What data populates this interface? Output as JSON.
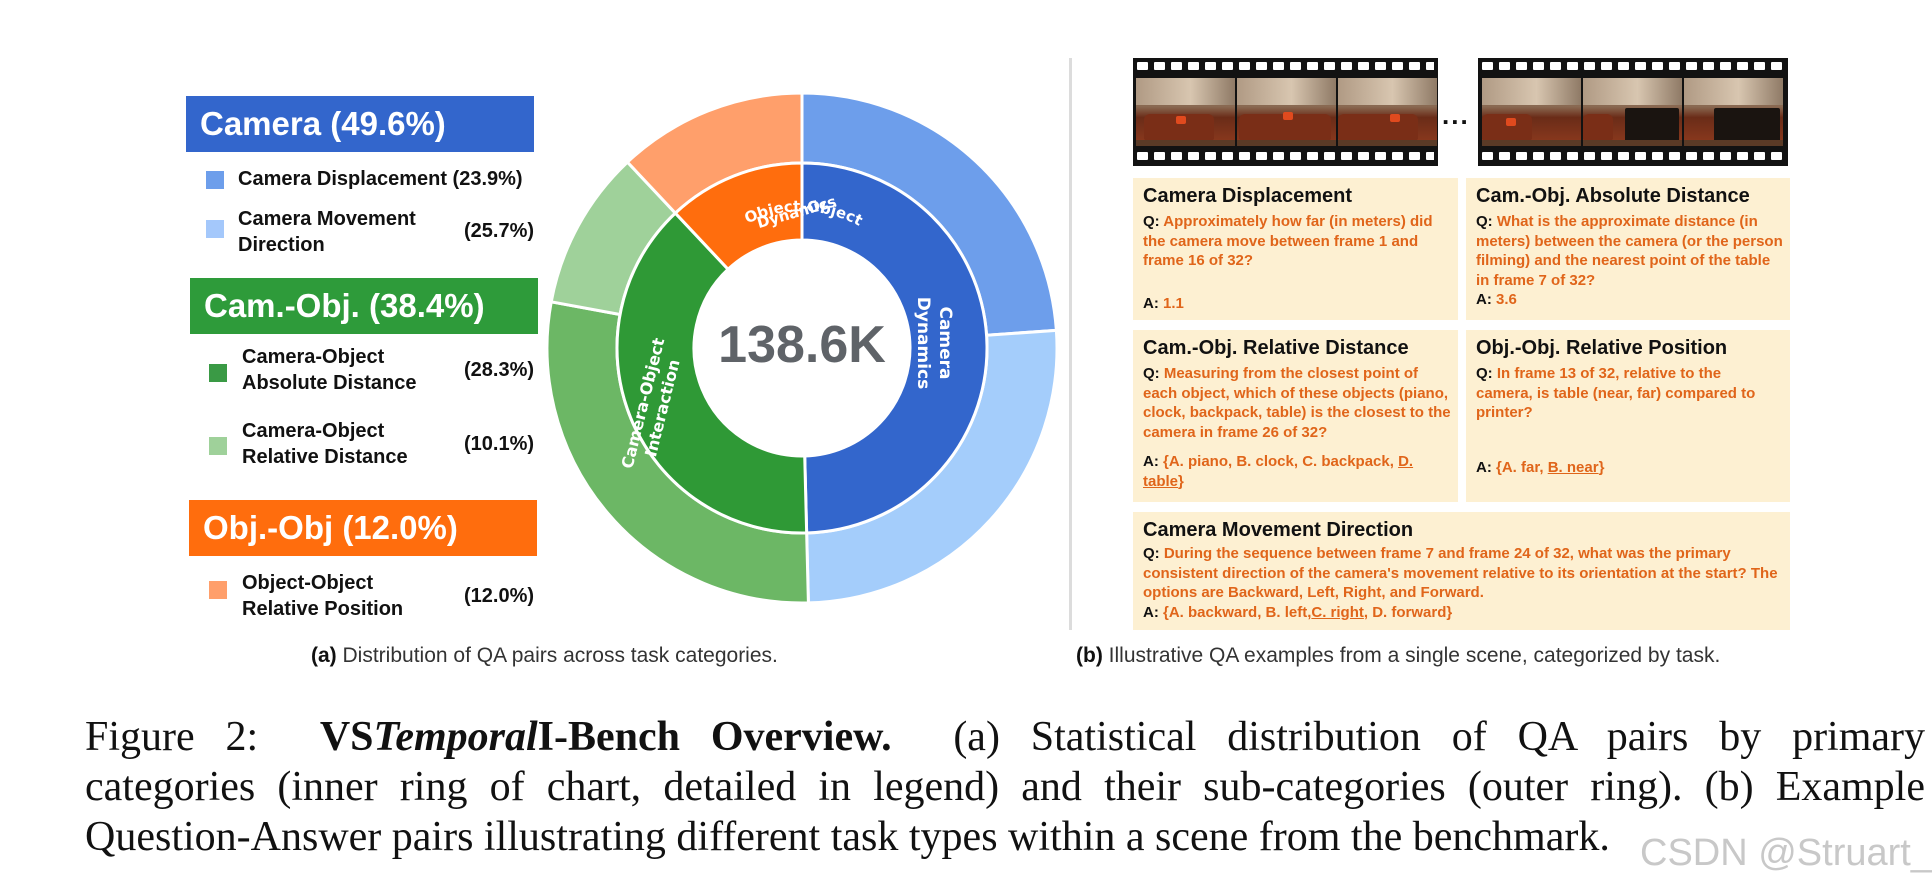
{
  "legend": {
    "camera": {
      "header": "Camera (49.6%)",
      "color": "#3366cc",
      "items": [
        {
          "name": "Camera Displacement (23.9%)",
          "pct": "",
          "color": "#6d9eeb"
        },
        {
          "name": "Camera Movement Direction",
          "pct": "(25.7%)",
          "color": "#a4c8fb"
        }
      ]
    },
    "camobj": {
      "header": "Cam.-Obj. (38.4%)",
      "color": "#2e9b3a",
      "items": [
        {
          "name": "Camera-Object Absolute Distance",
          "pct": "(28.3%)",
          "color": "#3a9a45"
        },
        {
          "name": "Camera-Object Relative Distance",
          "pct": "(10.1%)",
          "color": "#9fd19a"
        }
      ]
    },
    "objobj": {
      "header": "Obj.-Obj (12.0%)",
      "color": "#ff6d0d",
      "items": [
        {
          "name": "Object-Object Relative Position",
          "pct": "(12.0%)",
          "color": "#ff9f6b"
        }
      ]
    }
  },
  "chart_data": {
    "type": "pie",
    "center_label": "138.6K",
    "inner_ring": [
      {
        "name": "Camera Dynamics",
        "value": 49.6,
        "color": "#3366cc"
      },
      {
        "name": "Camera-Object Interaction",
        "value": 38.4,
        "color": "#2f9936"
      },
      {
        "name": "Object-Object Dynamics",
        "value": 12.0,
        "color": "#ff6d0d"
      }
    ],
    "outer_ring": [
      {
        "name": "Camera Displacement",
        "value": 23.9,
        "color": "#6d9eeb"
      },
      {
        "name": "Camera Movement Direction",
        "value": 25.7,
        "color": "#a4cdfb"
      },
      {
        "name": "Camera-Object Absolute Distance",
        "value": 28.3,
        "color": "#6cb765"
      },
      {
        "name": "Camera-Object Relative Distance",
        "value": 10.1,
        "color": "#9fd19a"
      },
      {
        "name": "Object-Object Relative Position",
        "value": 12.0,
        "color": "#ff9f6b"
      }
    ]
  },
  "qa": {
    "cam_disp": {
      "title": "Camera Displacement",
      "q_label": "Q:",
      "q": "Approximately how far (in meters) did the camera move between frame 1 and frame 16 of 32?",
      "a_label": "A:",
      "a": "1.1"
    },
    "abs_dist": {
      "title": "Cam.-Obj. Absolute Distance",
      "q_label": "Q:",
      "q": "What is the approximate distance (in meters) between the camera (or the person filming) and the nearest point of the table in frame 7 of 32?",
      "a_label": "A:",
      "a": "3.6"
    },
    "rel_dist": {
      "title": "Cam.-Obj. Relative Distance",
      "q_label": "Q:",
      "q": "Measuring from the closest point of each object, which of these objects (piano, clock, backpack, table) is the closest to the camera in frame 26 of 32?",
      "a_label": "A:",
      "a_pre": "{A. piano, B. clock, C. backpack,",
      "a_ul": "D. table",
      "a_post": "}"
    },
    "rel_pos": {
      "title": "Obj.-Obj. Relative Position",
      "q_label": "Q:",
      "q": "In frame 13 of 32, relative to the camera, is table (near, far) compared to printer?",
      "a_label": "A:",
      "a_pre": "{A. far,",
      "a_ul": "B. near",
      "a_post": "}"
    },
    "move_dir": {
      "title": "Camera Movement Direction",
      "q_label": "Q:",
      "q": "During the sequence between frame 7 and frame 24 of 32, what was the primary consistent direction of the camera's movement relative to its orientation at the start? The options are Backward, Left, Right, and Forward.",
      "a_label": "A:",
      "a_pre": "{A. backward, B. left,",
      "a_ul": "C. right",
      "a_post": ", D. forward}"
    }
  },
  "ellipsis": "...",
  "subcaptions": {
    "a_tag": "(a)",
    "a": "Distribution of QA pairs across task categories.",
    "b_tag": "(b)",
    "b": "Illustrative QA examples from a single scene, categorized by task."
  },
  "caption": {
    "prefix": "Figure 2:",
    "name_vs": "VS",
    "name_temporal": "Temporal",
    "name_rest": "I-Bench Overview.",
    "text1": "(a) Statistical distribution of QA pairs by primary",
    "line2": "categories (inner ring of chart, detailed in legend) and their sub-categories (outer ring). (b) Example",
    "line3": "Question-Answer pairs illustrating different task types within a scene from the benchmark."
  },
  "watermark": "CSDN @Struart_R"
}
